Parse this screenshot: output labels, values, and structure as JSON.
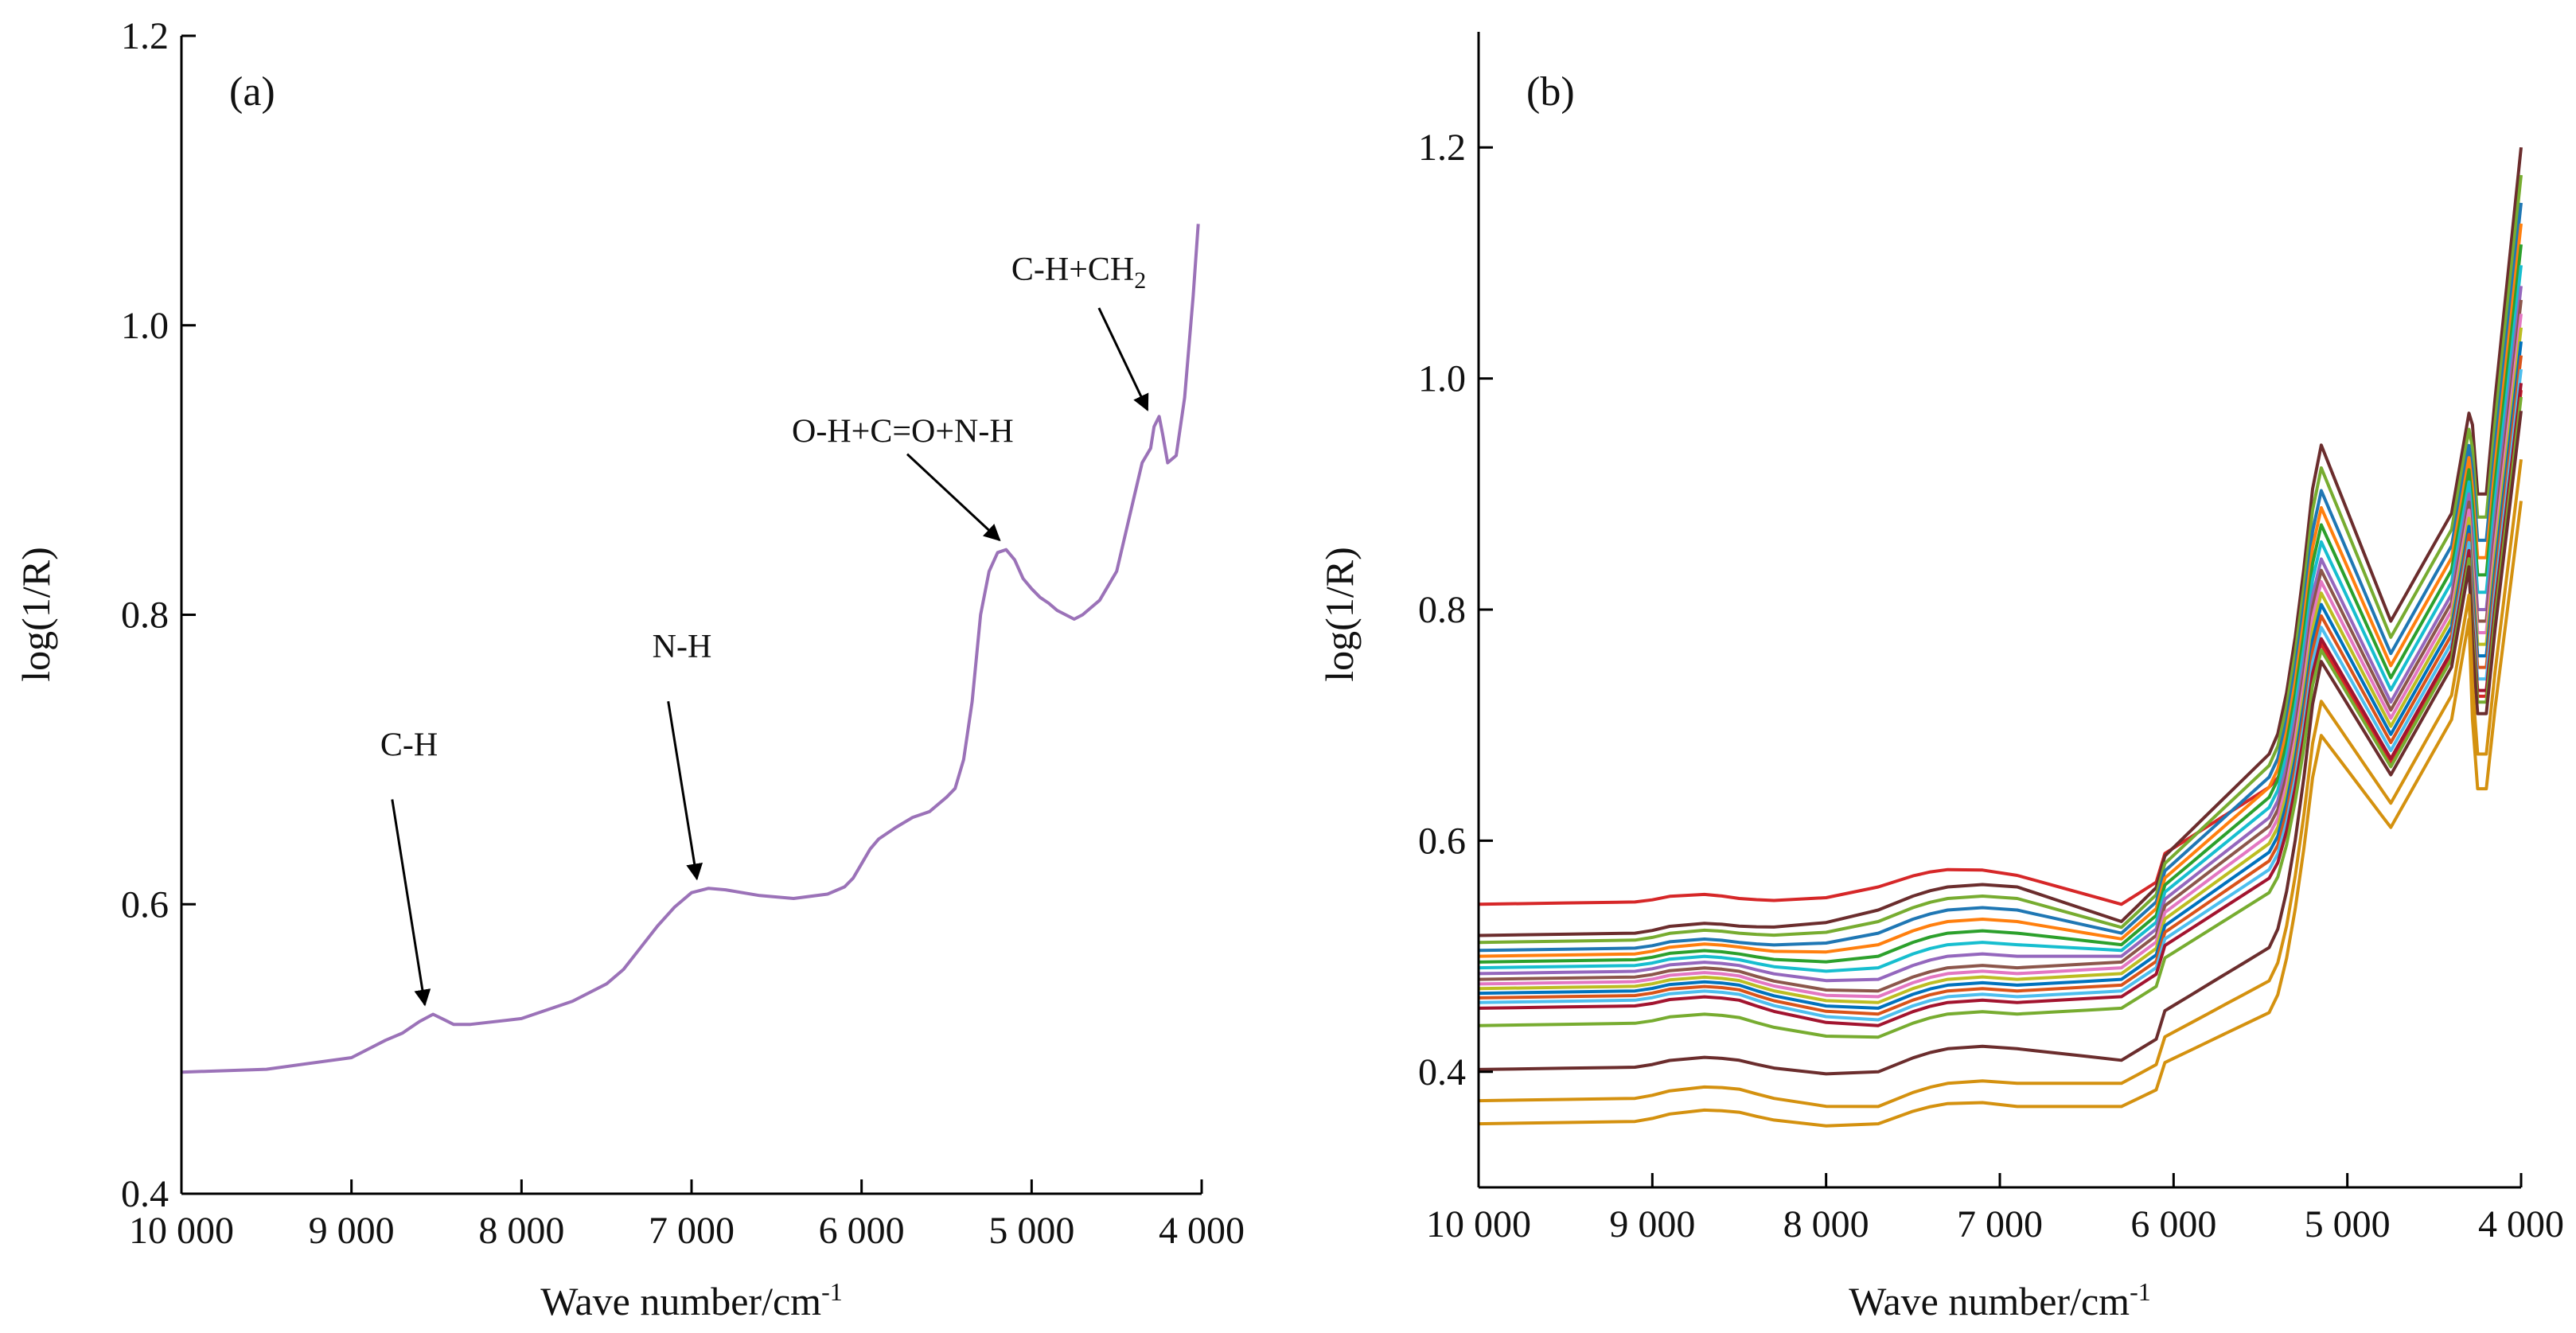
{
  "chart_data": [
    {
      "type": "line",
      "panel_label": "(a)",
      "xlabel": "Wave number/cm",
      "xlabel_sup": "-1",
      "ylabel": "log(1/R)",
      "xlim": [
        10000,
        4000
      ],
      "ylim": [
        0.4,
        1.2
      ],
      "xticks": [
        10000,
        9000,
        8000,
        7000,
        6000,
        5000,
        4000
      ],
      "xtick_labels": [
        "10 000",
        "9 000",
        "8 000",
        "7 000",
        "6 000",
        "5 000",
        "4 000"
      ],
      "yticks": [
        0.4,
        0.6,
        0.8,
        1.0,
        1.2
      ],
      "ytick_labels": [
        "0.4",
        "0.6",
        "0.8",
        "1.0",
        "1.2"
      ],
      "grid": false,
      "series": [
        {
          "color": "#9b72b8",
          "x": [
            10000,
            9500,
            9000,
            8900,
            8800,
            8700,
            8600,
            8520,
            8450,
            8400,
            8300,
            8000,
            7700,
            7500,
            7400,
            7300,
            7200,
            7100,
            7000,
            6900,
            6800,
            6600,
            6400,
            6200,
            6100,
            6050,
            6000,
            5950,
            5900,
            5800,
            5700,
            5600,
            5500,
            5450,
            5400,
            5350,
            5300,
            5250,
            5200,
            5150,
            5100,
            5050,
            5000,
            4950,
            4900,
            4850,
            4800,
            4750,
            4700,
            4650,
            4600,
            4500,
            4400,
            4350,
            4300,
            4280,
            4250,
            4230,
            4200,
            4150,
            4100,
            4050,
            4020
          ],
          "y": [
            0.484,
            0.486,
            0.494,
            0.5,
            0.506,
            0.511,
            0.519,
            0.524,
            0.52,
            0.517,
            0.517,
            0.521,
            0.533,
            0.545,
            0.555,
            0.57,
            0.585,
            0.598,
            0.608,
            0.611,
            0.61,
            0.606,
            0.604,
            0.607,
            0.612,
            0.618,
            0.628,
            0.638,
            0.645,
            0.653,
            0.66,
            0.664,
            0.674,
            0.68,
            0.7,
            0.74,
            0.8,
            0.83,
            0.843,
            0.845,
            0.838,
            0.825,
            0.818,
            0.812,
            0.808,
            0.803,
            0.8,
            0.797,
            0.8,
            0.805,
            0.81,
            0.83,
            0.88,
            0.905,
            0.915,
            0.93,
            0.937,
            0.925,
            0.905,
            0.91,
            0.95,
            1.02,
            1.07
          ]
        }
      ],
      "annotations": [
        {
          "text": "C-H",
          "x": 8550,
          "y": 0.524
        },
        {
          "text": "N-H",
          "x": 6950,
          "y": 0.611
        },
        {
          "text": "O-H+C=O+N-H",
          "x": 5170,
          "y": 0.845
        },
        {
          "text": "C-H+CH",
          "sub": "2",
          "x": 4300,
          "y": 0.935
        }
      ]
    },
    {
      "type": "line",
      "panel_label": "(b)",
      "xlabel": "Wave number/cm",
      "xlabel_sup": "-1",
      "ylabel": "log(1/R)",
      "xlim": [
        10000,
        4000
      ],
      "ylim": [
        0.3,
        1.3
      ],
      "xticks": [
        10000,
        9000,
        8000,
        7000,
        6000,
        5000,
        4000
      ],
      "xtick_labels": [
        "10 000",
        "9 000",
        "8 000",
        "7 000",
        "6 000",
        "5 000",
        "4 000"
      ],
      "yticks": [
        0.4,
        0.6,
        0.8,
        1.0,
        1.2
      ],
      "ytick_labels": [
        "0.4",
        "0.6",
        "0.8",
        "1.0",
        "1.2"
      ],
      "grid": false,
      "profile_x": [
        10000,
        9500,
        9100,
        9000,
        8900,
        8700,
        8600,
        8500,
        8400,
        8300,
        8000,
        7700,
        7500,
        7400,
        7300,
        7100,
        6900,
        6800,
        6700,
        6500,
        6300,
        6200,
        6100,
        6050,
        6000,
        5900,
        5800,
        5700,
        5600,
        5450,
        5400,
        5350,
        5300,
        5250,
        5200,
        5150,
        5100,
        5050,
        5000,
        4950,
        4900,
        4850,
        4800,
        4750,
        4700,
        4650,
        4600,
        4500,
        4400,
        4350,
        4300,
        4280,
        4250,
        4230,
        4200,
        4150,
        4100,
        4050,
        4000
      ],
      "series": [
        {
          "color": "#d62728",
          "base": [
            0.545,
            0.55,
            0.56,
            0.57,
            0.545,
            0.775
          ]
        },
        {
          "color": "#6b2d2d",
          "base": [
            0.518,
            0.526,
            0.54,
            0.56,
            0.53,
            0.95
          ]
        },
        {
          "color": "#77ac30",
          "base": [
            0.512,
            0.52,
            0.53,
            0.55,
            0.525,
            0.93
          ]
        },
        {
          "color": "#1f77b4",
          "base": [
            0.505,
            0.512,
            0.52,
            0.54,
            0.52,
            0.91
          ]
        },
        {
          "color": "#ff7f0e",
          "base": [
            0.5,
            0.508,
            0.51,
            0.53,
            0.515,
            0.895
          ]
        },
        {
          "color": "#2ca02c",
          "base": [
            0.495,
            0.502,
            0.5,
            0.52,
            0.51,
            0.88
          ]
        },
        {
          "color": "#17becf",
          "base": [
            0.49,
            0.497,
            0.49,
            0.51,
            0.505,
            0.865
          ]
        },
        {
          "color": "#9467bd",
          "base": [
            0.485,
            0.492,
            0.48,
            0.5,
            0.5,
            0.85
          ]
        },
        {
          "color": "#8c564b",
          "base": [
            0.48,
            0.487,
            0.47,
            0.49,
            0.495,
            0.84
          ]
        },
        {
          "color": "#e377c2",
          "base": [
            0.476,
            0.483,
            0.465,
            0.485,
            0.49,
            0.83
          ]
        },
        {
          "color": "#bcbd22",
          "base": [
            0.472,
            0.479,
            0.46,
            0.48,
            0.485,
            0.82
          ]
        },
        {
          "color": "#0072bd",
          "base": [
            0.468,
            0.475,
            0.455,
            0.475,
            0.48,
            0.81
          ]
        },
        {
          "color": "#d95319",
          "base": [
            0.464,
            0.471,
            0.45,
            0.47,
            0.475,
            0.8
          ]
        },
        {
          "color": "#4dbeee",
          "base": [
            0.46,
            0.467,
            0.445,
            0.465,
            0.47,
            0.79
          ]
        },
        {
          "color": "#a2142f",
          "base": [
            0.455,
            0.462,
            0.44,
            0.46,
            0.465,
            0.78
          ]
        },
        {
          "color": "#77ac30",
          "base": [
            0.44,
            0.447,
            0.43,
            0.45,
            0.455,
            0.77
          ]
        },
        {
          "color": "#6b2d2d",
          "base": [
            0.402,
            0.41,
            0.4,
            0.42,
            0.41,
            0.76
          ]
        },
        {
          "color": "#d4910f",
          "base": [
            0.375,
            0.385,
            0.37,
            0.39,
            0.39,
            0.725
          ]
        },
        {
          "color": "#d4910f",
          "base": [
            0.355,
            0.365,
            0.355,
            0.37,
            0.37,
            0.695
          ]
        }
      ]
    }
  ]
}
